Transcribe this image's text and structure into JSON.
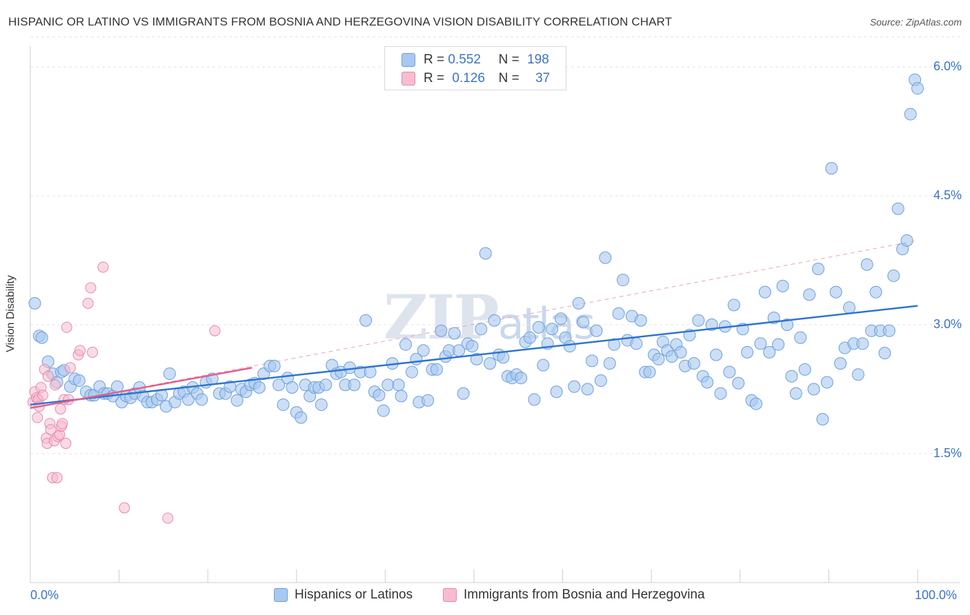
{
  "header": {
    "title": "HISPANIC OR LATINO VS IMMIGRANTS FROM BOSNIA AND HERZEGOVINA VISION DISABILITY CORRELATION CHART",
    "source": "Source: ZipAtlas.com"
  },
  "watermark": {
    "main": "ZIP",
    "sub": "atlas"
  },
  "stats_legend": {
    "rows": [
      {
        "r_label": "R =",
        "r_value": "0.552",
        "n_label": "N =",
        "n_value": "198",
        "color": "#a9c8f0",
        "border": "#6b9ed9"
      },
      {
        "r_label": "R =",
        "r_value": "0.126",
        "n_label": "N =",
        "n_value": "37",
        "color": "#f7bcd0",
        "border": "#e588a6"
      }
    ]
  },
  "colors": {
    "blue_fill": "#a9c8f0",
    "blue_stroke": "#6b9ed9",
    "blue_line": "#2f74d0",
    "pink_fill": "#f7bcd0",
    "pink_stroke": "#e588a6",
    "pink_line": "#e0608c",
    "grid": "#e3e3e3",
    "axis_text": "#3b72c4"
  },
  "chart_data": {
    "type": "scatter",
    "title": "HISPANIC OR LATINO VS IMMIGRANTS FROM BOSNIA AND HERZEGOVINA VISION DISABILITY CORRELATION CHART",
    "ylabel": "Vision Disability",
    "xlabel": "",
    "xlim": [
      0,
      100
    ],
    "ylim": [
      0,
      6.35
    ],
    "x_tick_labels": [
      "0.0%",
      "100.0%"
    ],
    "y_ticks": [
      1.5,
      3.0,
      4.5,
      6.0
    ],
    "y_tick_labels": [
      "1.5%",
      "3.0%",
      "4.5%",
      "6.0%"
    ],
    "grid": "horizontal dashed",
    "legend_position": "bottom",
    "series": [
      {
        "name": "Hispanics or Latinos",
        "r": 0.552,
        "n": 198,
        "trend": {
          "x": [
            0,
            100
          ],
          "y": [
            2.07,
            3.22
          ]
        },
        "points": [
          [
            0.5,
            3.25
          ],
          [
            1.0,
            2.87
          ],
          [
            1.3,
            2.85
          ],
          [
            2.0,
            2.57
          ],
          [
            2.5,
            2.43
          ],
          [
            3.0,
            2.33
          ],
          [
            3.5,
            2.45
          ],
          [
            3.8,
            2.47
          ],
          [
            4.5,
            2.28
          ],
          [
            5.0,
            2.37
          ],
          [
            5.5,
            2.35
          ],
          [
            6.3,
            2.22
          ],
          [
            6.8,
            2.18
          ],
          [
            7.2,
            2.18
          ],
          [
            7.8,
            2.28
          ],
          [
            8.3,
            2.2
          ],
          [
            8.7,
            2.2
          ],
          [
            9.3,
            2.17
          ],
          [
            9.8,
            2.28
          ],
          [
            10.3,
            2.1
          ],
          [
            10.8,
            2.17
          ],
          [
            11.3,
            2.15
          ],
          [
            11.8,
            2.2
          ],
          [
            12.3,
            2.27
          ],
          [
            12.7,
            2.17
          ],
          [
            13.2,
            2.1
          ],
          [
            13.7,
            2.1
          ],
          [
            14.3,
            2.13
          ],
          [
            14.8,
            2.18
          ],
          [
            15.3,
            2.05
          ],
          [
            15.7,
            2.43
          ],
          [
            16.3,
            2.1
          ],
          [
            16.8,
            2.2
          ],
          [
            17.3,
            2.22
          ],
          [
            17.8,
            2.13
          ],
          [
            18.3,
            2.27
          ],
          [
            18.8,
            2.2
          ],
          [
            19.3,
            2.13
          ],
          [
            19.8,
            2.33
          ],
          [
            20.5,
            2.37
          ],
          [
            21.3,
            2.2
          ],
          [
            22.0,
            2.2
          ],
          [
            22.5,
            2.28
          ],
          [
            23.3,
            2.12
          ],
          [
            23.8,
            2.25
          ],
          [
            24.3,
            2.22
          ],
          [
            24.8,
            2.3
          ],
          [
            25.3,
            2.32
          ],
          [
            25.8,
            2.27
          ],
          [
            26.3,
            2.43
          ],
          [
            27.0,
            2.52
          ],
          [
            27.5,
            2.52
          ],
          [
            28.0,
            2.3
          ],
          [
            28.5,
            2.07
          ],
          [
            29.0,
            2.38
          ],
          [
            29.5,
            2.27
          ],
          [
            30.0,
            1.98
          ],
          [
            30.5,
            1.92
          ],
          [
            31.0,
            2.3
          ],
          [
            31.5,
            2.17
          ],
          [
            32.0,
            2.27
          ],
          [
            32.5,
            2.27
          ],
          [
            32.8,
            2.07
          ],
          [
            33.3,
            2.3
          ],
          [
            34.0,
            2.53
          ],
          [
            34.5,
            2.43
          ],
          [
            35.0,
            2.45
          ],
          [
            35.5,
            2.3
          ],
          [
            36.0,
            2.5
          ],
          [
            36.5,
            2.3
          ],
          [
            37.2,
            2.45
          ],
          [
            37.8,
            3.05
          ],
          [
            38.3,
            2.45
          ],
          [
            38.8,
            2.22
          ],
          [
            39.3,
            2.18
          ],
          [
            39.8,
            2.0
          ],
          [
            40.3,
            2.3
          ],
          [
            40.8,
            2.55
          ],
          [
            41.5,
            2.3
          ],
          [
            41.8,
            2.17
          ],
          [
            42.3,
            2.77
          ],
          [
            43.0,
            2.45
          ],
          [
            43.5,
            2.6
          ],
          [
            43.8,
            2.1
          ],
          [
            44.3,
            2.7
          ],
          [
            44.8,
            2.12
          ],
          [
            45.3,
            2.48
          ],
          [
            45.8,
            2.48
          ],
          [
            46.3,
            2.93
          ],
          [
            46.8,
            2.63
          ],
          [
            47.2,
            2.7
          ],
          [
            47.8,
            2.9
          ],
          [
            48.3,
            2.7
          ],
          [
            48.8,
            2.2
          ],
          [
            49.3,
            2.78
          ],
          [
            49.8,
            2.75
          ],
          [
            50.3,
            2.6
          ],
          [
            50.8,
            2.95
          ],
          [
            51.3,
            3.83
          ],
          [
            51.8,
            2.55
          ],
          [
            52.3,
            3.05
          ],
          [
            52.8,
            2.65
          ],
          [
            53.3,
            2.62
          ],
          [
            53.8,
            2.4
          ],
          [
            54.3,
            2.38
          ],
          [
            54.8,
            2.42
          ],
          [
            55.3,
            2.38
          ],
          [
            55.8,
            2.8
          ],
          [
            56.3,
            2.85
          ],
          [
            56.8,
            2.13
          ],
          [
            57.3,
            2.97
          ],
          [
            57.8,
            2.53
          ],
          [
            58.3,
            2.78
          ],
          [
            58.8,
            2.95
          ],
          [
            59.3,
            2.22
          ],
          [
            59.8,
            3.07
          ],
          [
            60.3,
            2.85
          ],
          [
            60.8,
            2.75
          ],
          [
            61.3,
            2.28
          ],
          [
            61.8,
            3.25
          ],
          [
            62.3,
            3.03
          ],
          [
            62.8,
            2.25
          ],
          [
            63.3,
            2.58
          ],
          [
            63.8,
            2.93
          ],
          [
            64.3,
            2.35
          ],
          [
            64.8,
            3.78
          ],
          [
            65.3,
            2.55
          ],
          [
            65.8,
            2.77
          ],
          [
            66.3,
            3.13
          ],
          [
            66.8,
            3.52
          ],
          [
            67.3,
            2.82
          ],
          [
            67.8,
            3.1
          ],
          [
            68.3,
            2.78
          ],
          [
            68.8,
            3.05
          ],
          [
            69.3,
            2.45
          ],
          [
            69.8,
            2.45
          ],
          [
            70.3,
            2.65
          ],
          [
            70.8,
            2.6
          ],
          [
            71.3,
            2.8
          ],
          [
            71.8,
            2.7
          ],
          [
            72.3,
            2.63
          ],
          [
            72.8,
            2.77
          ],
          [
            73.3,
            2.68
          ],
          [
            73.8,
            2.52
          ],
          [
            74.3,
            2.88
          ],
          [
            74.8,
            2.55
          ],
          [
            75.3,
            3.05
          ],
          [
            75.8,
            2.4
          ],
          [
            76.3,
            2.33
          ],
          [
            76.8,
            3.0
          ],
          [
            77.3,
            2.65
          ],
          [
            77.8,
            2.2
          ],
          [
            78.3,
            2.98
          ],
          [
            78.8,
            2.45
          ],
          [
            79.3,
            3.23
          ],
          [
            79.8,
            2.32
          ],
          [
            80.3,
            2.95
          ],
          [
            80.8,
            2.68
          ],
          [
            81.3,
            2.12
          ],
          [
            81.8,
            2.08
          ],
          [
            82.3,
            2.78
          ],
          [
            82.8,
            3.38
          ],
          [
            83.3,
            2.68
          ],
          [
            83.8,
            3.08
          ],
          [
            84.3,
            2.77
          ],
          [
            84.8,
            3.45
          ],
          [
            85.3,
            3.0
          ],
          [
            85.8,
            2.4
          ],
          [
            86.3,
            2.2
          ],
          [
            86.8,
            2.85
          ],
          [
            87.3,
            2.48
          ],
          [
            87.8,
            3.35
          ],
          [
            88.3,
            2.25
          ],
          [
            88.8,
            3.65
          ],
          [
            89.3,
            1.9
          ],
          [
            89.8,
            2.33
          ],
          [
            90.3,
            4.82
          ],
          [
            90.8,
            3.38
          ],
          [
            91.3,
            2.55
          ],
          [
            91.8,
            2.73
          ],
          [
            92.3,
            3.2
          ],
          [
            92.8,
            2.78
          ],
          [
            93.3,
            2.42
          ],
          [
            93.8,
            2.78
          ],
          [
            94.3,
            3.7
          ],
          [
            94.8,
            2.93
          ],
          [
            95.3,
            3.38
          ],
          [
            95.8,
            2.93
          ],
          [
            96.3,
            2.67
          ],
          [
            96.8,
            2.93
          ],
          [
            97.3,
            3.57
          ],
          [
            97.8,
            4.35
          ],
          [
            98.3,
            3.88
          ],
          [
            98.8,
            3.98
          ],
          [
            99.2,
            5.45
          ],
          [
            99.7,
            5.85
          ],
          [
            100.0,
            5.75
          ]
        ]
      },
      {
        "name": "Immigrants from Bosnia and Herzegovina",
        "r": 0.126,
        "n": 37,
        "trend": {
          "x": [
            0,
            25
          ],
          "y": [
            2.03,
            2.5
          ]
        },
        "trend_extended": {
          "x": [
            0,
            100
          ],
          "y": [
            2.03,
            3.98
          ]
        },
        "points": [
          [
            0.3,
            2.1
          ],
          [
            0.5,
            2.22
          ],
          [
            0.7,
            2.15
          ],
          [
            0.8,
            1.92
          ],
          [
            0.9,
            2.13
          ],
          [
            1.0,
            2.05
          ],
          [
            1.2,
            2.27
          ],
          [
            1.4,
            2.18
          ],
          [
            1.6,
            2.48
          ],
          [
            1.8,
            1.68
          ],
          [
            1.9,
            1.62
          ],
          [
            2.0,
            2.4
          ],
          [
            2.2,
            1.85
          ],
          [
            2.3,
            1.78
          ],
          [
            2.5,
            1.22
          ],
          [
            2.7,
            1.65
          ],
          [
            2.8,
            2.3
          ],
          [
            3.0,
            1.22
          ],
          [
            3.1,
            1.7
          ],
          [
            3.3,
            1.72
          ],
          [
            3.4,
            2.02
          ],
          [
            3.5,
            1.82
          ],
          [
            3.6,
            1.85
          ],
          [
            3.8,
            2.13
          ],
          [
            4.0,
            1.62
          ],
          [
            4.1,
            2.97
          ],
          [
            4.3,
            2.13
          ],
          [
            4.5,
            2.5
          ],
          [
            5.4,
            2.65
          ],
          [
            5.6,
            2.7
          ],
          [
            6.5,
            3.25
          ],
          [
            6.8,
            3.43
          ],
          [
            7.0,
            2.68
          ],
          [
            8.2,
            3.67
          ],
          [
            10.6,
            0.87
          ],
          [
            15.5,
            0.75
          ],
          [
            20.8,
            2.93
          ]
        ]
      }
    ]
  },
  "bottom_legend": {
    "items": [
      {
        "label": "Hispanics or Latinos"
      },
      {
        "label": "Immigrants from Bosnia and Herzegovina"
      }
    ]
  }
}
